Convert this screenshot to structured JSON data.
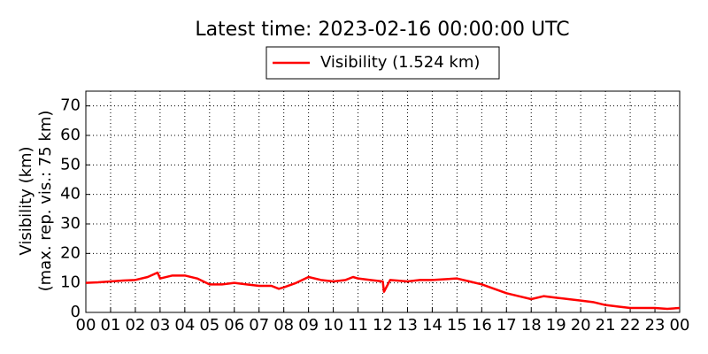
{
  "chart_data": {
    "type": "line",
    "title": "Latest time: 2023-02-16 00:00:00 UTC",
    "y_label": [
      "Visibility (km)",
      "(max. rep. vis.: 75 km)"
    ],
    "x": [
      0,
      0.5,
      1,
      1.5,
      2,
      2.5,
      2.9,
      3,
      3.5,
      4,
      4.5,
      5,
      5.5,
      6,
      6.5,
      7,
      7.5,
      7.8,
      8,
      8.5,
      9,
      9.5,
      10,
      10.5,
      10.8,
      11,
      11.5,
      12,
      12.05,
      12.3,
      13,
      13.5,
      14,
      15,
      15.5,
      16,
      16.5,
      17,
      17.5,
      18,
      18.5,
      19,
      19.5,
      20,
      20.5,
      21,
      21.5,
      22,
      22.5,
      23,
      23.5,
      24
    ],
    "series": [
      {
        "name": "Visibility (1.524 km)",
        "color": "#ff0000",
        "values": [
          10,
          10.2,
          10.5,
          10.8,
          11,
          12,
          13.5,
          11.5,
          12.5,
          12.5,
          11.5,
          9.5,
          9.5,
          10,
          9.5,
          9,
          9,
          8,
          8.5,
          10,
          12,
          11,
          10.5,
          11,
          12,
          11.5,
          11,
          10.5,
          7,
          11,
          10.5,
          11,
          11,
          11.5,
          10.5,
          9.5,
          8,
          6.5,
          5.5,
          4.5,
          5.5,
          5,
          4.5,
          4,
          3.5,
          2.5,
          2,
          1.5,
          1.5,
          1.5,
          1.2,
          1.5
        ]
      }
    ],
    "xlim": [
      0,
      24
    ],
    "xticks": [
      {
        "value": 0,
        "label": "00"
      },
      {
        "value": 1,
        "label": "01"
      },
      {
        "value": 2,
        "label": "02"
      },
      {
        "value": 3,
        "label": "03"
      },
      {
        "value": 4,
        "label": "04"
      },
      {
        "value": 5,
        "label": "05"
      },
      {
        "value": 6,
        "label": "06"
      },
      {
        "value": 7,
        "label": "07"
      },
      {
        "value": 8,
        "label": "08"
      },
      {
        "value": 9,
        "label": "09"
      },
      {
        "value": 10,
        "label": "10"
      },
      {
        "value": 11,
        "label": "11"
      },
      {
        "value": 12,
        "label": "12"
      },
      {
        "value": 13,
        "label": "13"
      },
      {
        "value": 14,
        "label": "14"
      },
      {
        "value": 15,
        "label": "15"
      },
      {
        "value": 16,
        "label": "16"
      },
      {
        "value": 17,
        "label": "17"
      },
      {
        "value": 18,
        "label": "18"
      },
      {
        "value": 19,
        "label": "19"
      },
      {
        "value": 20,
        "label": "20"
      },
      {
        "value": 21,
        "label": "21"
      },
      {
        "value": 22,
        "label": "22"
      },
      {
        "value": 23,
        "label": "23"
      },
      {
        "value": 24,
        "label": "00"
      }
    ],
    "ylim": [
      0,
      75
    ],
    "yticks": [
      0,
      10,
      20,
      30,
      40,
      50,
      60,
      70
    ],
    "grid": true,
    "legend": "top"
  }
}
